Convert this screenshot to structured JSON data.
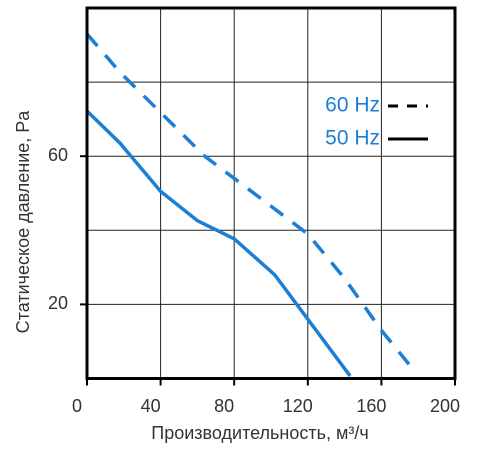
{
  "chart_data": {
    "type": "line",
    "x_label": "Производительность, м³/ч",
    "y_label": "Статическое давление, Pa",
    "xlim": [
      0,
      200
    ],
    "xticks": [
      0,
      40,
      80,
      120,
      160,
      200
    ],
    "ylim": [
      0,
      100
    ],
    "yticks": [
      20,
      60
    ],
    "grid": true,
    "x_grid": [
      40,
      80,
      120,
      160
    ],
    "y_grid": [
      20,
      40,
      60,
      80
    ],
    "legend": "upper right",
    "series": [
      {
        "name": "60 Hz",
        "color": "#1c7fd6",
        "style": "dashed",
        "x": [
          0,
          18,
          64,
          80,
          99.5,
          120,
          140,
          160,
          178
        ],
        "values": [
          93,
          82.6,
          60,
          54,
          46.7,
          39,
          27,
          13,
          2
        ]
      },
      {
        "name": "50 Hz",
        "color": "#1c7fd6",
        "style": "solid",
        "x": [
          0,
          18,
          40,
          60,
          80,
          102,
          120,
          143
        ],
        "values": [
          72.2,
          63.5,
          50.5,
          42.6,
          37.7,
          28,
          16,
          0.7
        ]
      }
    ]
  }
}
